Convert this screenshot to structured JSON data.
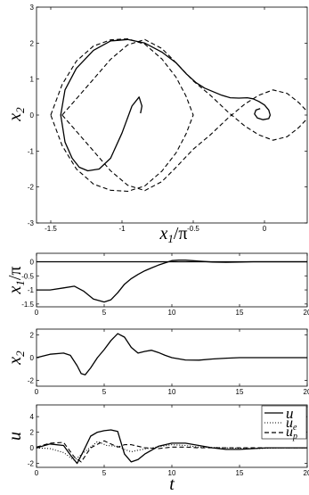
{
  "chart_data": [
    {
      "type": "line",
      "xlabel_main": "x",
      "xlabel_sub": "1",
      "xlabel_tail": "/π",
      "ylabel_main": "x",
      "ylabel_sub": "2",
      "xlim": [
        -1.6,
        0.3
      ],
      "ylim": [
        -3,
        3
      ],
      "xticks": [
        -1.5,
        -1,
        -0.5,
        0
      ],
      "xtick_labels": [
        "-1.5",
        "-1",
        "-0.5",
        "0"
      ],
      "yticks": [
        -3,
        -2,
        -1,
        0,
        1,
        2,
        3
      ],
      "ytick_labels": [
        "-3",
        "-2",
        "-1",
        "0",
        "1",
        "2",
        "3"
      ],
      "series": [
        {
          "style": "solid",
          "x": [
            -0.87,
            -0.86,
            -0.88,
            -0.93,
            -1.0,
            -1.08,
            -1.16,
            -1.24,
            -1.3,
            -1.35,
            -1.4,
            -1.43,
            -1.4,
            -1.32,
            -1.2,
            -1.08,
            -0.96,
            -0.84,
            -0.72,
            -0.62,
            -0.55,
            -0.48,
            -0.42,
            -0.36,
            -0.3,
            -0.24,
            -0.18,
            -0.12,
            -0.08,
            -0.04,
            0.0,
            0.03,
            0.04,
            0.03,
            -0.01,
            -0.05,
            -0.07,
            -0.06,
            -0.03
          ],
          "y": [
            0.05,
            0.25,
            0.5,
            0.25,
            -0.5,
            -1.2,
            -1.5,
            -1.55,
            -1.45,
            -1.2,
            -0.75,
            0.0,
            0.7,
            1.3,
            1.8,
            2.06,
            2.1,
            2.0,
            1.75,
            1.45,
            1.15,
            0.9,
            0.75,
            0.65,
            0.55,
            0.48,
            0.47,
            0.48,
            0.45,
            0.38,
            0.28,
            0.14,
            0.0,
            -0.1,
            -0.13,
            -0.08,
            0.03,
            0.14,
            0.18
          ]
        },
        {
          "style": "dashed",
          "x": [
            -1.5,
            -1.42,
            -1.32,
            -1.2,
            -1.08,
            -0.96,
            -0.84,
            -0.72,
            -0.62,
            -0.55,
            -0.5,
            -0.55,
            -0.62,
            -0.72,
            -0.84,
            -0.96,
            -1.08,
            -1.2,
            -1.32,
            -1.42,
            -1.5
          ],
          "y": [
            0.0,
            0.85,
            1.5,
            1.92,
            2.09,
            2.12,
            1.97,
            1.56,
            1.05,
            0.52,
            0.0,
            -0.52,
            -1.05,
            -1.56,
            -1.97,
            -2.12,
            -2.09,
            -1.92,
            -1.5,
            -0.85,
            0.0
          ]
        },
        {
          "style": "dashed",
          "x": [
            -1.42,
            -1.32,
            -1.2,
            -1.08,
            -0.96,
            -0.84,
            -0.72,
            -0.62,
            -0.5,
            -0.38,
            -0.26,
            -0.14,
            -0.04,
            0.06,
            0.16,
            0.24,
            0.3
          ],
          "y": [
            0.0,
            0.45,
            1.0,
            1.55,
            1.95,
            2.1,
            1.85,
            1.45,
            0.95,
            0.55,
            0.1,
            -0.3,
            -0.55,
            -0.7,
            -0.6,
            -0.35,
            -0.1
          ]
        },
        {
          "style": "dashed",
          "x": [
            -1.42,
            -1.32,
            -1.2,
            -1.08,
            -0.96,
            -0.84,
            -0.72,
            -0.62,
            -0.5,
            -0.38,
            -0.26,
            -0.14,
            -0.04,
            0.06,
            0.16,
            0.24,
            0.3
          ],
          "y": [
            0.0,
            -0.45,
            -1.0,
            -1.55,
            -1.95,
            -2.1,
            -1.85,
            -1.45,
            -0.95,
            -0.55,
            -0.1,
            0.3,
            0.55,
            0.7,
            0.6,
            0.35,
            0.1
          ]
        }
      ]
    },
    {
      "type": "line",
      "ylabel_main": "x",
      "ylabel_sub": "1",
      "ylabel_tail": "/π",
      "xlim": [
        0,
        20
      ],
      "ylim": [
        -1.6,
        0.3
      ],
      "xticks": [
        0,
        5,
        10,
        15,
        20
      ],
      "xtick_labels": [
        "0",
        "5",
        "10",
        "15",
        "20"
      ],
      "yticks": [
        -1.5,
        -1,
        -0.5,
        0
      ],
      "ytick_labels": [
        "-1.5",
        "-1",
        "-0.5",
        "0"
      ],
      "series": [
        {
          "style": "solid",
          "x": [
            0,
            1,
            2,
            2.8,
            3.5,
            4.2,
            5,
            5.5,
            6,
            6.5,
            7,
            7.5,
            8,
            8.5,
            9,
            9.5,
            10,
            10.5,
            11,
            12,
            13,
            14,
            15,
            16,
            17,
            18,
            19,
            20
          ],
          "y": [
            -1.0,
            -1.0,
            -0.93,
            -0.87,
            -1.05,
            -1.32,
            -1.43,
            -1.35,
            -1.1,
            -0.8,
            -0.6,
            -0.45,
            -0.32,
            -0.22,
            -0.12,
            -0.04,
            0.04,
            0.06,
            0.06,
            0.02,
            -0.01,
            -0.02,
            -0.01,
            0.0,
            0.0,
            0.0,
            0.0,
            0.0
          ]
        },
        {
          "style": "solid",
          "x": [
            0,
            20
          ],
          "y": [
            0,
            0
          ]
        }
      ]
    },
    {
      "type": "line",
      "ylabel_main": "x",
      "ylabel_sub": "2",
      "xlim": [
        0,
        20
      ],
      "ylim": [
        -2.5,
        2.5
      ],
      "xticks": [
        0,
        5,
        10,
        15,
        20
      ],
      "xtick_labels": [
        "0",
        "5",
        "10",
        "15",
        "20"
      ],
      "yticks": [
        -2,
        0,
        2
      ],
      "ytick_labels": [
        "-2",
        "0",
        "2"
      ],
      "series": [
        {
          "style": "solid",
          "x": [
            0,
            1,
            2,
            2.5,
            3,
            3.3,
            3.6,
            4,
            4.5,
            5,
            5.5,
            6,
            6.5,
            7,
            7.5,
            8,
            8.5,
            9,
            9.5,
            10,
            11,
            12,
            13,
            14,
            15,
            16,
            17,
            18,
            19,
            20
          ],
          "y": [
            0.0,
            0.3,
            0.4,
            0.2,
            -0.7,
            -1.4,
            -1.5,
            -0.9,
            0.0,
            0.7,
            1.5,
            2.1,
            1.8,
            0.9,
            0.4,
            0.55,
            0.65,
            0.45,
            0.2,
            0.0,
            -0.2,
            -0.22,
            -0.12,
            -0.05,
            0.0,
            0.0,
            0.0,
            0.0,
            0.0,
            0.0
          ]
        }
      ]
    },
    {
      "type": "line",
      "ylabel_main": "u",
      "xlabel_main": "t",
      "xlim": [
        0,
        20
      ],
      "ylim": [
        -2.5,
        5.5
      ],
      "xticks": [
        0,
        5,
        10,
        15,
        20
      ],
      "xtick_labels": [
        "0",
        "5",
        "10",
        "15",
        "20"
      ],
      "yticks": [
        -2,
        0,
        2,
        4
      ],
      "ytick_labels": [
        "-2",
        "0",
        "2",
        "4"
      ],
      "legend_position": "top-right",
      "series": [
        {
          "name_main": "u",
          "style": "solid",
          "x": [
            0,
            1,
            2,
            2.5,
            3,
            3.5,
            4,
            4.5,
            5,
            5.5,
            6,
            6.5,
            7,
            7.5,
            8,
            9,
            10,
            11,
            12,
            13,
            14,
            15,
            16,
            17,
            18,
            19,
            20
          ],
          "y": [
            0.0,
            0.5,
            0.3,
            -0.9,
            -2.0,
            -0.3,
            1.5,
            2.0,
            2.2,
            2.3,
            2.1,
            -0.8,
            -1.8,
            -1.5,
            -0.8,
            0.2,
            0.6,
            0.6,
            0.3,
            0.0,
            -0.2,
            -0.2,
            -0.1,
            0.0,
            0.0,
            0.0,
            0.0
          ]
        },
        {
          "name_main": "u",
          "name_sub": "e",
          "style": "dotted",
          "x": [
            0,
            1,
            2,
            2.8,
            3.5,
            4.5,
            5.2,
            6,
            6.5,
            7,
            7.5,
            8.5,
            10,
            11,
            12,
            14,
            16,
            18,
            20
          ],
          "y": [
            0.0,
            -0.1,
            -0.6,
            -1.6,
            -0.6,
            0.8,
            0.3,
            0.2,
            -0.2,
            -0.5,
            -0.3,
            0.0,
            0.4,
            0.3,
            0.1,
            0.0,
            -0.1,
            0.0,
            0.0
          ]
        },
        {
          "name_main": "u",
          "name_sub": "p",
          "style": "dashed",
          "x": [
            0,
            1,
            2,
            2.8,
            3.3,
            4,
            5,
            6,
            6.5,
            7,
            8,
            9,
            10,
            11,
            12,
            14,
            16,
            18,
            20
          ],
          "y": [
            0.1,
            0.6,
            0.7,
            -1.2,
            -1.8,
            0.0,
            0.9,
            0.1,
            0.4,
            0.4,
            0.0,
            -0.1,
            0.1,
            0.1,
            0.0,
            0.0,
            0.0,
            0.0,
            0.0
          ]
        }
      ]
    }
  ]
}
